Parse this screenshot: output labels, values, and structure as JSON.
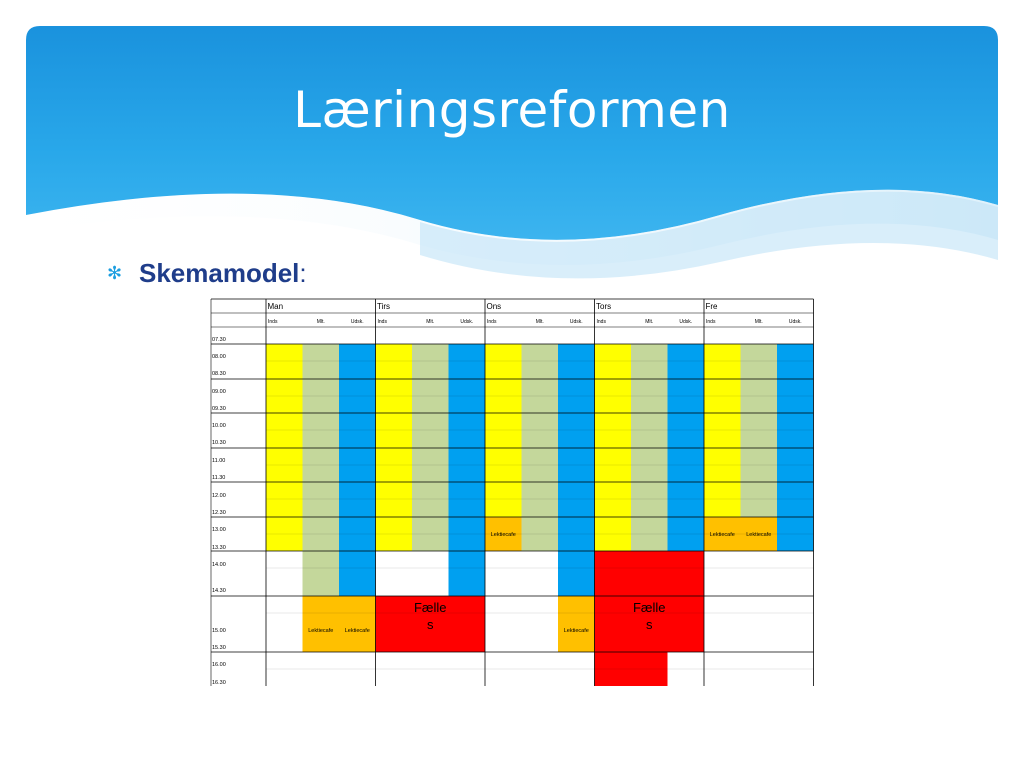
{
  "slide": {
    "title": "Læringsreformen",
    "bullet": {
      "icon": "asterisk-bullet-icon",
      "label": "Skemamodel",
      "suffix": ":"
    }
  },
  "colors": {
    "header_blue": "#1c9ee0",
    "title_text": "#ffffff",
    "bullet_text": "#1f3d8a",
    "yellow": "#ffff00",
    "green": "#c4d79b",
    "blue": "#00a0f0",
    "orange": "#ffc000",
    "red": "#ff0000",
    "white": "#ffffff"
  },
  "schedule": {
    "days": [
      "Man",
      "Tirs",
      "Ons",
      "Tors",
      "Fre"
    ],
    "subheaders": [
      "Inds",
      "Mlt.",
      "Udsk."
    ],
    "times": [
      "07.30",
      "08.00",
      "08.30",
      "09.00",
      "09.30",
      "10.00",
      "10.30",
      "11.00",
      "11.30",
      "12.00",
      "12.30",
      "13.00",
      "13.30",
      "14.00",
      "14.30",
      "15.00",
      "15.30",
      "16.00",
      "16.30"
    ],
    "lektiecafe_label": "Lektiecafe",
    "faelles_label_line1": "Fælle",
    "faelles_label_line2": "s",
    "columns": [
      {
        "day": "Man",
        "sub": "Inds",
        "blocks": [
          "Y",
          "Y",
          "Y",
          "Y",
          "Y",
          "Y",
          "W",
          "W",
          "W"
        ]
      },
      {
        "day": "Man",
        "sub": "Mlt.",
        "blocks": [
          "G",
          "G",
          "G",
          "G",
          "G",
          "G",
          "G",
          "L",
          "W"
        ]
      },
      {
        "day": "Man",
        "sub": "Udsk.",
        "blocks": [
          "B",
          "B",
          "B",
          "B",
          "B",
          "B",
          "B",
          "L",
          "W"
        ]
      },
      {
        "day": "Tirs",
        "sub": "Inds",
        "blocks": [
          "Y",
          "Y",
          "Y",
          "Y",
          "Y",
          "Y",
          "W",
          "R",
          "W"
        ]
      },
      {
        "day": "Tirs",
        "sub": "Mlt.",
        "blocks": [
          "G",
          "G",
          "G",
          "G",
          "G",
          "G",
          "W",
          "R",
          "W"
        ]
      },
      {
        "day": "Tirs",
        "sub": "Udsk.",
        "blocks": [
          "B",
          "B",
          "B",
          "B",
          "B",
          "B",
          "B",
          "R",
          "W"
        ]
      },
      {
        "day": "Ons",
        "sub": "Inds",
        "blocks": [
          "Y",
          "Y",
          "Y",
          "Y",
          "Y",
          "L",
          "W",
          "W",
          "W"
        ]
      },
      {
        "day": "Ons",
        "sub": "Mlt.",
        "blocks": [
          "G",
          "G",
          "G",
          "G",
          "G",
          "G",
          "W",
          "W",
          "W"
        ]
      },
      {
        "day": "Ons",
        "sub": "Udsk.",
        "blocks": [
          "B",
          "B",
          "B",
          "B",
          "B",
          "B",
          "B",
          "L",
          "W"
        ]
      },
      {
        "day": "Tors",
        "sub": "Inds",
        "blocks": [
          "Y",
          "Y",
          "Y",
          "Y",
          "Y",
          "Y",
          "R",
          "R",
          "R"
        ]
      },
      {
        "day": "Tors",
        "sub": "Mlt.",
        "blocks": [
          "G",
          "G",
          "G",
          "G",
          "G",
          "G",
          "R",
          "R",
          "R"
        ]
      },
      {
        "day": "Tors",
        "sub": "Udsk.",
        "blocks": [
          "B",
          "B",
          "B",
          "B",
          "B",
          "B",
          "R",
          "R",
          "W"
        ]
      },
      {
        "day": "Fre",
        "sub": "Inds",
        "blocks": [
          "Y",
          "Y",
          "Y",
          "Y",
          "Y",
          "L",
          "W",
          "W",
          "W"
        ]
      },
      {
        "day": "Fre",
        "sub": "Mlt.",
        "blocks": [
          "G",
          "G",
          "G",
          "G",
          "G",
          "L",
          "W",
          "W",
          "W"
        ]
      },
      {
        "day": "Fre",
        "sub": "Udsk.",
        "blocks": [
          "B",
          "B",
          "B",
          "B",
          "B",
          "B",
          "W",
          "W",
          "W"
        ]
      }
    ],
    "faelles_groups": [
      {
        "day": "Tirs",
        "block": 7
      },
      {
        "day": "Tors",
        "block": 7
      }
    ]
  }
}
